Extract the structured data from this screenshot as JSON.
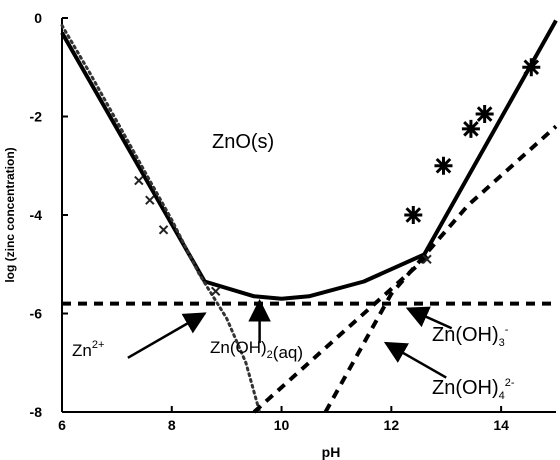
{
  "chart_data": {
    "type": "line",
    "title": "",
    "xlabel": "pH",
    "ylabel": "log (zinc concentration)",
    "xlim": [
      6,
      15
    ],
    "ylim": [
      -8,
      0
    ],
    "grid": false,
    "x_ticks": [
      6,
      8,
      10,
      12,
      14
    ],
    "y_ticks": [
      0,
      -2,
      -4,
      -6,
      -8
    ],
    "region_label": "ZnO(s)",
    "series": [
      {
        "style": "solid",
        "points": [
          [
            6.0,
            -0.3
          ],
          [
            8.6,
            -5.35
          ],
          [
            9.5,
            -5.65
          ],
          [
            10.0,
            -5.7
          ],
          [
            10.5,
            -5.65
          ],
          [
            11.5,
            -5.35
          ],
          [
            12.6,
            -4.8
          ],
          [
            15.0,
            -0.05
          ]
        ]
      },
      {
        "style": "dotted",
        "points": [
          [
            6.0,
            -0.15
          ],
          [
            6.5,
            -1.1
          ],
          [
            7.0,
            -2.1
          ],
          [
            7.5,
            -3.1
          ],
          [
            8.0,
            -4.1
          ],
          [
            8.5,
            -5.2
          ],
          [
            9.0,
            -6.1
          ],
          [
            9.35,
            -7.0
          ],
          [
            9.6,
            -8.0
          ]
        ]
      },
      {
        "style": "dashed",
        "points": [
          [
            6.0,
            -5.8
          ],
          [
            15.0,
            -5.8
          ]
        ]
      },
      {
        "style": "dashed",
        "points": [
          [
            9.5,
            -8.0
          ],
          [
            11.0,
            -6.5
          ],
          [
            12.7,
            -4.8
          ]
        ]
      },
      {
        "style": "dashed",
        "points": [
          [
            10.8,
            -8.0
          ],
          [
            12.0,
            -5.6
          ],
          [
            13.4,
            -3.8
          ],
          [
            15.0,
            -2.2
          ]
        ]
      }
    ],
    "markers": [
      {
        "shape": "asterisk",
        "x": 12.4,
        "y": -4.0
      },
      {
        "shape": "asterisk",
        "x": 12.95,
        "y": -3.0
      },
      {
        "shape": "asterisk",
        "x": 13.45,
        "y": -2.25
      },
      {
        "shape": "asterisk",
        "x": 13.7,
        "y": -1.95
      },
      {
        "shape": "asterisk",
        "x": 14.55,
        "y": -1.0
      },
      {
        "shape": "cross",
        "x": 7.4,
        "y": -3.3
      },
      {
        "shape": "cross",
        "x": 7.6,
        "y": -3.7
      },
      {
        "shape": "cross",
        "x": 7.85,
        "y": -4.3
      },
      {
        "shape": "cross",
        "x": 8.8,
        "y": -5.55
      },
      {
        "shape": "cross",
        "x": 12.65,
        "y": -4.9
      }
    ],
    "annotations": [
      {
        "label": "Zn",
        "sup": "2+",
        "sub": "",
        "post": "",
        "from": [
          7.2,
          -6.9
        ],
        "to": [
          8.6,
          -6.0
        ]
      },
      {
        "label": "Zn(OH)",
        "sub": "2",
        "sup": "",
        "post": "(aq)",
        "from": [
          9.6,
          -6.6
        ],
        "to": [
          9.6,
          -5.75
        ]
      },
      {
        "label": "Zn(OH)",
        "sub": "3",
        "sup": "-",
        "post": "",
        "from": [
          13.1,
          -6.3
        ],
        "to": [
          12.3,
          -5.9
        ]
      },
      {
        "label": "Zn(OH)",
        "sub": "4",
        "sup": "2-",
        "post": "",
        "from": [
          13.0,
          -7.3
        ],
        "to": [
          11.9,
          -6.6
        ]
      }
    ]
  }
}
